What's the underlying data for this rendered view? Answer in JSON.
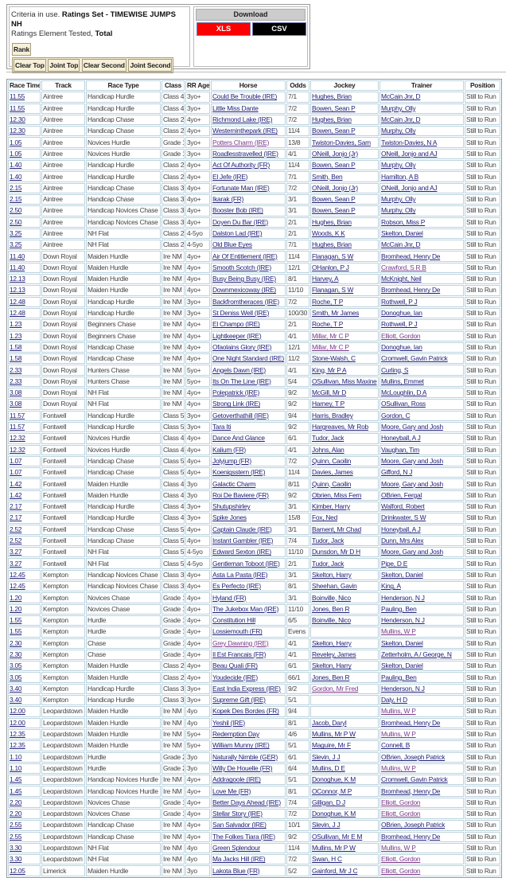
{
  "criteria": {
    "prefix": "Criteria in use. ",
    "ratings_set": "Ratings Set - TIMEWISE JUMPS NH",
    "element_label": "Ratings Element Tested, ",
    "element_value": "Total"
  },
  "rank_button": "Rank",
  "filter_buttons": [
    "Clear Top",
    "Joint Top",
    "Clear Second",
    "Joint Second"
  ],
  "download": {
    "title": "Download",
    "xls": "XLS",
    "csv": "CSV",
    "xls_color": "#ff0000",
    "csv_color": "#000000"
  },
  "table": {
    "headers": [
      "Race Time",
      "Track",
      "Race Type",
      "Class",
      "RR Age",
      "Horse",
      "Odds",
      "Jockey",
      "Trainer",
      "Position"
    ],
    "rows": [
      [
        "11.55",
        "Aintree",
        "Handicap Hurdle",
        "Class 4",
        "3yo+",
        "Could Be Trouble (IRE)",
        "7/1",
        "Hughes, Brian",
        "McCain Jnr, D",
        "Still to Run",
        []
      ],
      [
        "11.55",
        "Aintree",
        "Handicap Hurdle",
        "Class 4",
        "3yo+",
        "Little Miss Dante",
        "7/2",
        "Bowen, Sean P",
        "Murphy, Olly",
        "Still to Run",
        []
      ],
      [
        "12.30",
        "Aintree",
        "Handicap Chase",
        "Class 2",
        "4yo+",
        "Richmond Lake (IRE)",
        "7/2",
        "Hughes, Brian",
        "McCain Jnr, D",
        "Still to Run",
        []
      ],
      [
        "12.30",
        "Aintree",
        "Handicap Chase",
        "Class 2",
        "4yo+",
        "Westerninthepark (IRE)",
        "11/4",
        "Bowen, Sean P",
        "Murphy, Olly",
        "Still to Run",
        []
      ],
      [
        "1.05",
        "Aintree",
        "Novices Hurdle",
        "Grade 1",
        "3yo+",
        "Potters Charm (IRE)",
        "13/8",
        "Twiston-Davies, Sam",
        "Twiston-Davies, N A",
        "Still to Run",
        [
          "horse"
        ]
      ],
      [
        "1.05",
        "Aintree",
        "Novices Hurdle",
        "Grade 1",
        "3yo+",
        "Roadlesstravelled (IRE)",
        "4/1",
        "ONeill, Jonjo (Jr)",
        "ONeill, Jonjo and AJ",
        "Still to Run",
        []
      ],
      [
        "1.40",
        "Aintree",
        "Handicap Hurdle",
        "Class 2",
        "4yo+",
        "Act Of Authority (FR)",
        "11/4",
        "Bowen, Sean P",
        "Murphy, Olly",
        "Still to Run",
        []
      ],
      [
        "1.40",
        "Aintree",
        "Handicap Hurdle",
        "Class 2",
        "4yo+",
        "El Jefe (IRE)",
        "7/1",
        "Smith, Ben",
        "Hamilton, A B",
        "Still to Run",
        []
      ],
      [
        "2.15",
        "Aintree",
        "Handicap Chase",
        "Class 3",
        "4yo+",
        "Fortunate Man (IRE)",
        "7/2",
        "ONeill, Jonjo (Jr)",
        "ONeill, Jonjo and AJ",
        "Still to Run",
        []
      ],
      [
        "2.15",
        "Aintree",
        "Handicap Chase",
        "Class 3",
        "4yo+",
        "Ikarak (FR)",
        "3/1",
        "Bowen, Sean P",
        "Murphy, Olly",
        "Still to Run",
        []
      ],
      [
        "2.50",
        "Aintree",
        "Handicap Novices Chase",
        "Class 3",
        "4yo+",
        "Booster Bob (IRE)",
        "3/1",
        "Bowen, Sean P",
        "Murphy, Olly",
        "Still to Run",
        []
      ],
      [
        "2.50",
        "Aintree",
        "Handicap Novices Chase",
        "Class 3",
        "4yo+",
        "Doyen Du Bar (IRE)",
        "2/1",
        "Hughes, Brian",
        "Robson, Miss P",
        "Still to Run",
        []
      ],
      [
        "3.25",
        "Aintree",
        "NH Flat",
        "Class 2",
        "4-5yo",
        "Dalston Lad (IRE)",
        "2/1",
        "Woods, K K",
        "Skelton, Daniel",
        "Still to Run",
        []
      ],
      [
        "3.25",
        "Aintree",
        "NH Flat",
        "Class 2",
        "4-5yo",
        "Old Blue Eyes",
        "7/1",
        "Hughes, Brian",
        "McCain Jnr, D",
        "Still to Run",
        []
      ],
      [
        "11.40",
        "Down Royal",
        "Maiden Hurdle",
        "Ire NM",
        "4yo+",
        "Air Of Entitlement (IRE)",
        "11/4",
        "Flanagan, S W",
        "Bromhead, Henry De",
        "Still to Run",
        []
      ],
      [
        "11.40",
        "Down Royal",
        "Maiden Hurdle",
        "Ire NM",
        "4yo+",
        "Smooth Scotch (IRE)",
        "12/1",
        "OHanlon, P J",
        "Crawford, S R B",
        "Still to Run",
        [
          "trainer"
        ]
      ],
      [
        "12.13",
        "Down Royal",
        "Maiden Hurdle",
        "Ire NM",
        "4yo+",
        "Busy Being Busy (IRE)",
        "8/1",
        "Harvey, A",
        "McKnight, Neil",
        "Still to Run",
        []
      ],
      [
        "12.13",
        "Down Royal",
        "Maiden Hurdle",
        "Ire NM",
        "4yo+",
        "Downmexicoway (IRE)",
        "11/10",
        "Flanagan, S W",
        "Bromhead, Henry De",
        "Still to Run",
        []
      ],
      [
        "12.48",
        "Down Royal",
        "Handicap Hurdle",
        "Ire NM",
        "3yo+",
        "Backfromtheraces (IRE)",
        "7/2",
        "Roche, T P",
        "Rothwell, P J",
        "Still to Run",
        []
      ],
      [
        "12.48",
        "Down Royal",
        "Handicap Hurdle",
        "Ire NM",
        "3yo+",
        "St Deniss Well (IRE)",
        "100/30",
        "Smith, Mr James",
        "Donoghue, Ian",
        "Still to Run",
        []
      ],
      [
        "1.23",
        "Down Royal",
        "Beginners Chase",
        "Ire NM",
        "4yo+",
        "El Champo (IRE)",
        "2/1",
        "Roche, T P",
        "Rothwell, P J",
        "Still to Run",
        []
      ],
      [
        "1.23",
        "Down Royal",
        "Beginners Chase",
        "Ire NM",
        "4yo+",
        "Lightkeeper (IRE)",
        "4/1",
        "Millar, Mr C P",
        "Elliott, Gordon",
        "Still to Run",
        [
          "jockey",
          "trainer"
        ]
      ],
      [
        "1.58",
        "Down Royal",
        "Handicap Chase",
        "Ire NM",
        "4yo+",
        "Ofaolains Glory (IRE)",
        "12/1",
        "Millar, Mr C P",
        "Donoghue, Ian",
        "Still to Run",
        [
          "jockey"
        ]
      ],
      [
        "1.58",
        "Down Royal",
        "Handicap Chase",
        "Ire NM",
        "4yo+",
        "One Night Standard (IRE)",
        "11/2",
        "Stone-Walsh, C",
        "Cromwell, Gavin Patrick",
        "Still to Run",
        []
      ],
      [
        "2.33",
        "Down Royal",
        "Hunters Chase",
        "Ire NM",
        "5yo+",
        "Angels Dawn (IRE)",
        "4/1",
        "King, Mr P A",
        "Curling, S",
        "Still to Run",
        []
      ],
      [
        "2.33",
        "Down Royal",
        "Hunters Chase",
        "Ire NM",
        "5yo+",
        "Its On The Line (IRE)",
        "5/4",
        "OSullivan, Miss Maxine",
        "Mullins, Emmet",
        "Still to Run",
        []
      ],
      [
        "3.08",
        "Down Royal",
        "NH Flat",
        "Ire NM",
        "4yo+",
        "Polepatrick (IRE)",
        "9/2",
        "McGill, Mr D",
        "McLoughlin, D A",
        "Still to Run",
        []
      ],
      [
        "3.08",
        "Down Royal",
        "NH Flat",
        "Ire NM",
        "4yo+",
        "Strong Link (IRE)",
        "9/2",
        "Harney, T P",
        "OSullivan, Ross",
        "Still to Run",
        []
      ],
      [
        "11.57",
        "Fontwell",
        "Handicap Hurdle",
        "Class 5",
        "3yo+",
        "Getoverthathill (IRE)",
        "9/4",
        "Harris, Bradley",
        "Gordon, C",
        "Still to Run",
        []
      ],
      [
        "11.57",
        "Fontwell",
        "Handicap Hurdle",
        "Class 5",
        "3yo+",
        "Tara Iti",
        "9/2",
        "Hargreaves, Mr Rob",
        "Moore, Gary and Josh",
        "Still to Run",
        []
      ],
      [
        "12.32",
        "Fontwell",
        "Novices Hurdle",
        "Class 4",
        "4yo+",
        "Dance And Glance",
        "6/1",
        "Tudor, Jack",
        "Honeyball, A J",
        "Still to Run",
        []
      ],
      [
        "12.32",
        "Fontwell",
        "Novices Hurdle",
        "Class 4",
        "4yo+",
        "Kalium (FR)",
        "4/1",
        "Johns, Alan",
        "Vaughan, Tim",
        "Still to Run",
        []
      ],
      [
        "1.07",
        "Fontwell",
        "Handicap Chase",
        "Class 5",
        "4yo+",
        "Jolyjump (FR)",
        "7/2",
        "Quinn, Caoilin",
        "Moore, Gary and Josh",
        "Still to Run",
        []
      ],
      [
        "1.07",
        "Fontwell",
        "Handicap Chase",
        "Class 5",
        "4yo+",
        "Koenigsstern (IRE)",
        "11/4",
        "Davies, James",
        "Gifford, N J",
        "Still to Run",
        []
      ],
      [
        "1.42",
        "Fontwell",
        "Maiden Hurdle",
        "Class 4",
        "3yo",
        "Galactic Charm",
        "8/11",
        "Quinn, Caoilin",
        "Moore, Gary and Josh",
        "Still to Run",
        []
      ],
      [
        "1.42",
        "Fontwell",
        "Maiden Hurdle",
        "Class 4",
        "3yo",
        "Roi De Baviere (FR)",
        "9/2",
        "Obrien, Miss Fern",
        "OBrien, Fergal",
        "Still to Run",
        []
      ],
      [
        "2.17",
        "Fontwell",
        "Handicap Hurdle",
        "Class 4",
        "3yo+",
        "Shutupshirley",
        "3/1",
        "Kimber, Harry",
        "Walford, Robert",
        "Still to Run",
        []
      ],
      [
        "2.17",
        "Fontwell",
        "Handicap Hurdle",
        "Class 4",
        "3yo+",
        "Spike Jones",
        "15/8",
        "Fox, Ned",
        "Drinkwater, S W",
        "Still to Run",
        []
      ],
      [
        "2.52",
        "Fontwell",
        "Handicap Chase",
        "Class 5",
        "4yo+",
        "Captain Claude (IRE)",
        "3/1",
        "Bament, Mr Chad",
        "Honeyball, A J",
        "Still to Run",
        []
      ],
      [
        "2.52",
        "Fontwell",
        "Handicap Chase",
        "Class 5",
        "4yo+",
        "Instant Gambler (IRE)",
        "7/4",
        "Tudor, Jack",
        "Dunn, Mrs Alex",
        "Still to Run",
        []
      ],
      [
        "3.27",
        "Fontwell",
        "NH Flat",
        "Class 5",
        "4-5yo",
        "Edward Sexton (IRE)",
        "11/10",
        "Dunsdon, Mr D H",
        "Moore, Gary and Josh",
        "Still to Run",
        []
      ],
      [
        "3.27",
        "Fontwell",
        "NH Flat",
        "Class 5",
        "4-5yo",
        "Gentleman Toboot (IRE)",
        "2/1",
        "Tudor, Jack",
        "Pipe, D E",
        "Still to Run",
        []
      ],
      [
        "12.45",
        "Kempton",
        "Handicap Novices Chase",
        "Class 3",
        "4yo+",
        "Asta La Pasta (IRE)",
        "3/1",
        "Skelton, Harry",
        "Skelton, Daniel",
        "Still to Run",
        []
      ],
      [
        "12.45",
        "Kempton",
        "Handicap Novices Chase",
        "Class 3",
        "4yo+",
        "Es Perfecto (IRE)",
        "8/1",
        "Sheehan, Gavin",
        "King, A",
        "Still to Run",
        []
      ],
      [
        "1.20",
        "Kempton",
        "Novices Chase",
        "Grade 1",
        "4yo+",
        "Hyland (FR)",
        "3/1",
        "Boinville, Nico",
        "Henderson, N J",
        "Still to Run",
        []
      ],
      [
        "1.20",
        "Kempton",
        "Novices Chase",
        "Grade 1",
        "4yo+",
        "The Jukebox Man (IRE)",
        "11/10",
        "Jones, Ben R",
        "Pauling, Ben",
        "Still to Run",
        []
      ],
      [
        "1.55",
        "Kempton",
        "Hurdle",
        "Grade 1",
        "4yo+",
        "Constitution Hill",
        "6/5",
        "Boinville, Nico",
        "Henderson, N J",
        "Still to Run",
        []
      ],
      [
        "1.55",
        "Kempton",
        "Hurdle",
        "Grade 1",
        "4yo+",
        "Lossiemouth (FR)",
        "Evens",
        "",
        "Mullins, W P",
        "Still to Run",
        [
          "trainer"
        ]
      ],
      [
        "2.30",
        "Kempton",
        "Chase",
        "Grade 1",
        "4yo+",
        "Grey Dawning (IRE)",
        "4/1",
        "Skelton, Harry",
        "Skelton, Daniel",
        "Still to Run",
        [
          "horse"
        ]
      ],
      [
        "2.30",
        "Kempton",
        "Chase",
        "Grade 1",
        "4yo+",
        "Il Est Francais (FR)",
        "4/1",
        "Reveley, James",
        "Zetterholm, A / George, N",
        "Still to Run",
        []
      ],
      [
        "3.05",
        "Kempton",
        "Maiden Hurdle",
        "Class 2",
        "4yo+",
        "Beau Quali (FR)",
        "6/1",
        "Skelton, Harry",
        "Skelton, Daniel",
        "Still to Run",
        []
      ],
      [
        "3.05",
        "Kempton",
        "Maiden Hurdle",
        "Class 2",
        "4yo+",
        "Youdecide (IRE)",
        "66/1",
        "Jones, Ben R",
        "Pauling, Ben",
        "Still to Run",
        []
      ],
      [
        "3.40",
        "Kempton",
        "Handicap Hurdle",
        "Class 3",
        "3yo+",
        "East India Express (IRE)",
        "9/2",
        "Gordon, Mr Fred",
        "Henderson, N J",
        "Still to Run",
        [
          "jockey"
        ]
      ],
      [
        "3.40",
        "Kempton",
        "Handicap Hurdle",
        "Class 3",
        "3yo+",
        "Supreme Gift (IRE)",
        "5/1",
        "",
        "Daly, H D",
        "Still to Run",
        []
      ],
      [
        "12.00",
        "Leopardstown",
        "Maiden Hurdle",
        "Ire NM",
        "4yo",
        "Kopek Des Bordes (FR)",
        "9/4",
        "",
        "Mullins, W P",
        "Still to Run",
        [
          "trainer"
        ]
      ],
      [
        "12.00",
        "Leopardstown",
        "Maiden Hurdle",
        "Ire NM",
        "4yo",
        "Yeshil (IRE)",
        "8/1",
        "Jacob, Daryl",
        "Bromhead, Henry De",
        "Still to Run",
        []
      ],
      [
        "12.35",
        "Leopardstown",
        "Maiden Hurdle",
        "Ire NM",
        "5yo+",
        "Redemption Day",
        "4/6",
        "Mullins, Mr P W",
        "Mullins, W P",
        "Still to Run",
        [
          "trainer"
        ]
      ],
      [
        "12.35",
        "Leopardstown",
        "Maiden Hurdle",
        "Ire NM",
        "5yo+",
        "William Munny (IRE)",
        "5/1",
        "Maguire, Mr F",
        "Connell, B",
        "Still to Run",
        []
      ],
      [
        "1.10",
        "Leopardstown",
        "Hurdle",
        "Grade 2",
        "3yo",
        "Naturally Nimble (GER)",
        "6/1",
        "Slevin, J J",
        "OBrien, Joseph Patrick",
        "Still to Run",
        []
      ],
      [
        "1.10",
        "Leopardstown",
        "Hurdle",
        "Grade 2",
        "3yo",
        "Willy De Houelle (FR)",
        "6/4",
        "Mullins, D E",
        "Mullins, W P",
        "Still to Run",
        [
          "trainer"
        ]
      ],
      [
        "1.45",
        "Leopardstown",
        "Handicap Novices Hurdle",
        "Ire NM",
        "4yo+",
        "Addragoole (IRE)",
        "5/1",
        "Donoghue, K M",
        "Cromwell, Gavin Patrick",
        "Still to Run",
        []
      ],
      [
        "1.45",
        "Leopardstown",
        "Handicap Novices Hurdle",
        "Ire NM",
        "4yo+",
        "Love Me (FR)",
        "8/1",
        "OConnor, M P",
        "Bromhead, Henry De",
        "Still to Run",
        []
      ],
      [
        "2.20",
        "Leopardstown",
        "Novices Chase",
        "Grade 1",
        "4yo+",
        "Better Days Ahead (IRE)",
        "7/4",
        "Gilligan, D J",
        "Elliott, Gordon",
        "Still to Run",
        [
          "trainer"
        ]
      ],
      [
        "2.20",
        "Leopardstown",
        "Novices Chase",
        "Grade 1",
        "4yo+",
        "Stellar Story (IRE)",
        "7/2",
        "Donoghue, K M",
        "Elliott, Gordon",
        "Still to Run",
        [
          "trainer"
        ]
      ],
      [
        "2.55",
        "Leopardstown",
        "Handicap Chase",
        "Ire NM",
        "4yo+",
        "San Salvador (IRE)",
        "10/1",
        "Slevin, J J",
        "OBrien, Joseph Patrick",
        "Still to Run",
        []
      ],
      [
        "2.55",
        "Leopardstown",
        "Handicap Chase",
        "Ire NM",
        "4yo+",
        "The Folkes Tiara (IRE)",
        "9/2",
        "OSullivan, Mr E M",
        "Bromhead, Henry De",
        "Still to Run",
        []
      ],
      [
        "3.30",
        "Leopardstown",
        "NH Flat",
        "Ire NM",
        "4yo",
        "Green Splendour",
        "11/4",
        "Mullins, Mr P W",
        "Mullins, W P",
        "Still to Run",
        [
          "trainer"
        ]
      ],
      [
        "3.30",
        "Leopardstown",
        "NH Flat",
        "Ire NM",
        "4yo",
        "Ma Jacks Hill (IRE)",
        "7/2",
        "Swan, H C",
        "Elliott, Gordon",
        "Still to Run",
        [
          "trainer"
        ]
      ],
      [
        "12.05",
        "Limerick",
        "Maiden Hurdle",
        "Ire NM",
        "3yo",
        "Lakota Blue (FR)",
        "5/2",
        "Gainford, Mr J C",
        "Elliott, Gordon",
        "Still to Run",
        [
          "trainer"
        ]
      ]
    ]
  }
}
